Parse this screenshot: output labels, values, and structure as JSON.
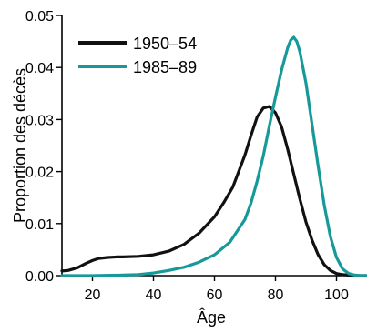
{
  "chart_data": {
    "type": "line",
    "title": "",
    "xlabel": "Âge",
    "ylabel": "Proportion des décès",
    "xlim": [
      10,
      110
    ],
    "ylim": [
      0,
      0.05
    ],
    "grid": false,
    "legend_position": "top-left",
    "x_ticks": [
      20,
      40,
      60,
      80,
      100
    ],
    "x_tick_labels": [
      "20",
      "40",
      "60",
      "80",
      "100"
    ],
    "y_ticks": [
      0,
      0.01,
      0.02,
      0.03,
      0.04,
      0.05
    ],
    "y_tick_labels": [
      "0.00",
      "0.01",
      "0.02",
      "0.03",
      "0.04",
      "0.05"
    ],
    "series": [
      {
        "name": "1950–54",
        "color": "#111111",
        "x": [
          10,
          12,
          15,
          18,
          20,
          22,
          25,
          28,
          30,
          35,
          40,
          45,
          50,
          55,
          60,
          63,
          66,
          70,
          72,
          74,
          76,
          78,
          80,
          82,
          84,
          86,
          88,
          90,
          92,
          94,
          96,
          98,
          100,
          102,
          104,
          106,
          108,
          110
        ],
        "y": [
          0.0009,
          0.001,
          0.0015,
          0.0024,
          0.0029,
          0.0033,
          0.0035,
          0.0036,
          0.0036,
          0.0037,
          0.004,
          0.0047,
          0.006,
          0.0082,
          0.0113,
          0.014,
          0.017,
          0.0232,
          0.027,
          0.0305,
          0.0322,
          0.0325,
          0.0313,
          0.0286,
          0.0243,
          0.0195,
          0.0147,
          0.0103,
          0.0068,
          0.004,
          0.0021,
          0.001,
          0.0004,
          0.0002,
          0.0001,
          0.0,
          0.0,
          0.0
        ]
      },
      {
        "name": "1985–89",
        "color": "#17999a",
        "x": [
          10,
          20,
          30,
          35,
          40,
          45,
          50,
          55,
          60,
          65,
          70,
          72,
          74,
          76,
          78,
          80,
          82,
          84,
          85,
          86,
          87,
          88,
          90,
          92,
          94,
          96,
          98,
          100,
          102,
          104,
          106,
          108,
          110
        ],
        "y": [
          0.0,
          0.0,
          0.0001,
          0.0002,
          0.0005,
          0.001,
          0.0016,
          0.0026,
          0.004,
          0.0064,
          0.0108,
          0.014,
          0.0182,
          0.023,
          0.0288,
          0.0343,
          0.0395,
          0.0438,
          0.0453,
          0.0458,
          0.045,
          0.043,
          0.037,
          0.029,
          0.021,
          0.0135,
          0.0075,
          0.0035,
          0.0013,
          0.0004,
          0.0001,
          0.0,
          0.0
        ]
      }
    ]
  }
}
